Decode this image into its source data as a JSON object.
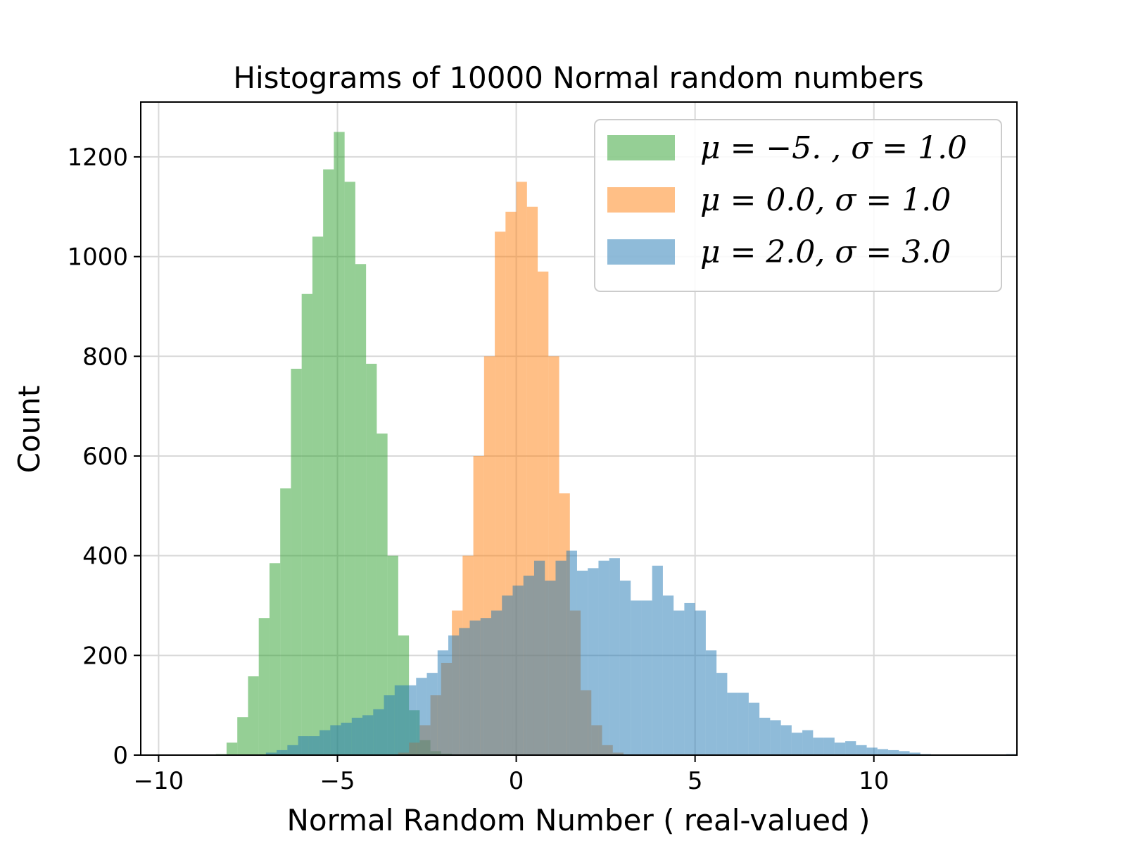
{
  "chart_data": {
    "type": "bar",
    "title": "Histograms of 10000 Normal random numbers",
    "xlabel": "Normal Random Number ( real-valued )",
    "ylabel": "Count",
    "xlim": [
      -10.5,
      14.0
    ],
    "ylim": [
      0,
      1310
    ],
    "xticks": [
      -10,
      -5,
      0,
      5,
      10
    ],
    "xtick_labels": [
      "−10",
      "−5",
      "0",
      "5",
      "10"
    ],
    "yticks": [
      0,
      200,
      400,
      600,
      800,
      1000,
      1200
    ],
    "ytick_labels": [
      "0",
      "200",
      "400",
      "600",
      "800",
      "1000",
      "1200"
    ],
    "grid": true,
    "legend_position": "top-right",
    "series": [
      {
        "name": "μ = −5. ,  σ = 1.0",
        "color": "#2ca02c",
        "alpha": 0.5,
        "bin_start": -8.4,
        "bin_width": 0.3,
        "values": [
          2,
          25,
          76,
          158,
          275,
          385,
          535,
          775,
          925,
          1040,
          1175,
          1250,
          1150,
          985,
          785,
          645,
          400,
          240,
          90,
          30,
          8,
          3
        ]
      },
      {
        "name": "μ = 0.0,  σ = 1.0",
        "color": "#ff7f0e",
        "alpha": 0.5,
        "bin_start": -3.3,
        "bin_width": 0.3,
        "values": [
          5,
          25,
          60,
          120,
          185,
          290,
          400,
          600,
          800,
          1050,
          1090,
          1150,
          1100,
          970,
          800,
          525,
          290,
          130,
          60,
          20,
          5
        ]
      },
      {
        "name": "μ = 2.0,  σ = 3.0",
        "color": "#1f77b4",
        "alpha": 0.5,
        "bin_start": -7.0,
        "bin_width": 0.3,
        "values": [
          5,
          10,
          20,
          38,
          38,
          50,
          60,
          65,
          75,
          80,
          92,
          120,
          140,
          140,
          155,
          165,
          210,
          240,
          255,
          270,
          275,
          290,
          320,
          340,
          360,
          390,
          350,
          390,
          410,
          370,
          375,
          390,
          395,
          350,
          310,
          310,
          380,
          320,
          290,
          305,
          290,
          210,
          165,
          125,
          125,
          105,
          75,
          70,
          60,
          45,
          50,
          35,
          35,
          25,
          28,
          20,
          15,
          12,
          10,
          8,
          5,
          2,
          1,
          1,
          0,
          0,
          0,
          0,
          0,
          2
        ]
      }
    ]
  }
}
